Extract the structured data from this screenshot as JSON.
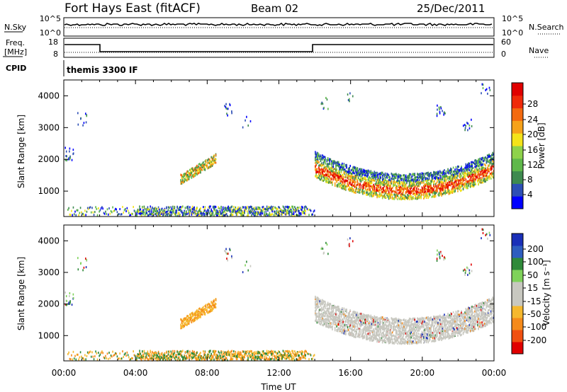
{
  "header": {
    "title": "Fort Hays East (fitACF)",
    "beam": "Beam 02",
    "date": "25/Dec/2011"
  },
  "noise_panel": {
    "left_label": "N.Sky",
    "left_ticks": [
      "10^5",
      "10^0"
    ],
    "right_label": "N.Search",
    "right_ticks": [
      "10^5",
      "10^0"
    ]
  },
  "freq_panel": {
    "left_label_top": "Freq.",
    "left_label_bottom": "[MHz]",
    "left_ticks": [
      "18",
      "8"
    ],
    "right_label": "Nave",
    "right_ticks": [
      "60",
      "0"
    ]
  },
  "cpid": {
    "label": "CPID",
    "value": "themis 3300 IF"
  },
  "colors": {
    "power": [
      "#0000ff",
      "#2d4fb5",
      "#3e8a4f",
      "#5fb84a",
      "#8ed24a",
      "#f4e31a",
      "#f6a21a",
      "#f36a10",
      "#f02a0a",
      "#e00000"
    ],
    "velocity": [
      "#1a2fb8",
      "#2e5dbf",
      "#2f8a3a",
      "#7fd25a",
      "#c8c8c0",
      "#c8c8c0",
      "#f5b82e",
      "#f58a1a",
      "#f05010",
      "#e00000"
    ]
  },
  "chart_data": [
    {
      "type": "heatmap",
      "name": "power",
      "xlabel": "",
      "ylabel": "Slant Range [km]",
      "xlim": [
        0,
        24
      ],
      "ylim": [
        200,
        4500
      ],
      "y_ticks": [
        "1000",
        "2000",
        "3000",
        "4000"
      ],
      "colorbar": {
        "label": "Power [dB]",
        "ticks": [
          "4",
          "8",
          "12",
          "16",
          "20",
          "24",
          "28"
        ]
      }
    },
    {
      "type": "heatmap",
      "name": "velocity",
      "xlabel": "Time UT",
      "ylabel": "Slant Range [km]",
      "xlim": [
        0,
        24
      ],
      "ylim": [
        200,
        4500
      ],
      "x_ticks": [
        "00:00",
        "04:00",
        "08:00",
        "12:00",
        "16:00",
        "20:00",
        "00:00"
      ],
      "y_ticks": [
        "1000",
        "2000",
        "3000",
        "4000"
      ],
      "colorbar": {
        "label": "Velocity [m s⁻¹]",
        "ticks": [
          "200",
          "100",
          "50",
          "15",
          "-15",
          "-50",
          "-100",
          "-200"
        ]
      }
    }
  ]
}
